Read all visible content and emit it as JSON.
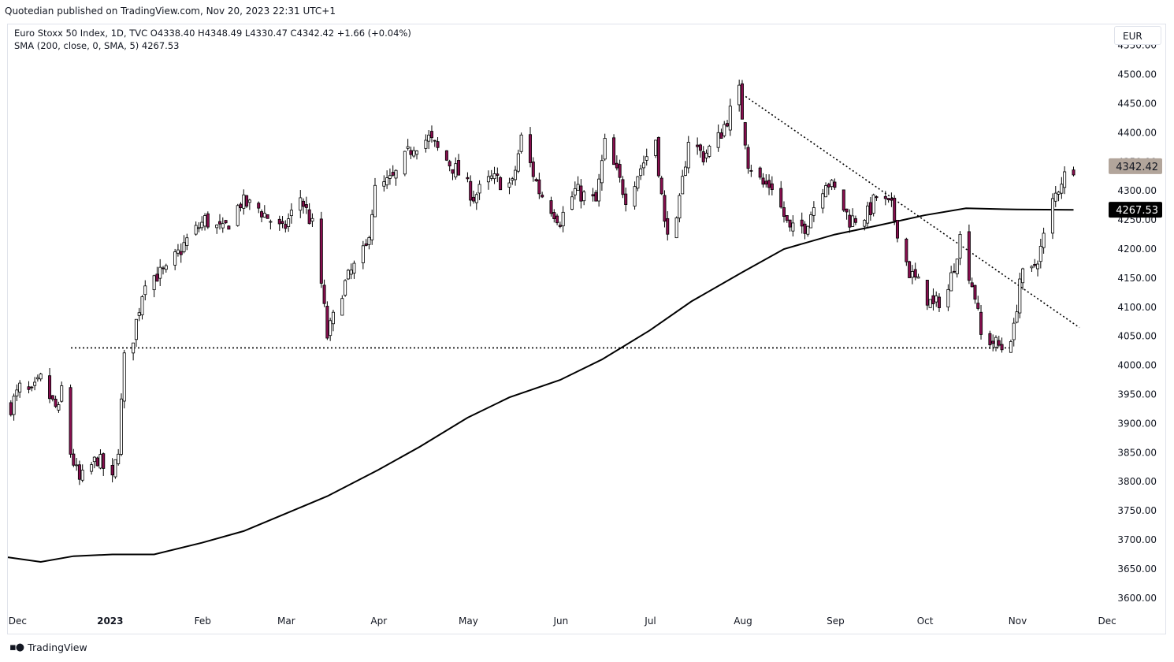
{
  "header": {
    "published": "Quotedian published on TradingView.com, Nov 20, 2023 22:31 UTC+1"
  },
  "legend": {
    "line1": "Euro Stoxx 50 Index, 1D, TVC  O4338.40  H4348.49  L4330.47  C4342.42  +1.66 (+0.04%)",
    "line2": "SMA (200, close, 0, SMA, 5)  4267.53"
  },
  "currency": "EUR",
  "footer": {
    "brand": "TradingView"
  },
  "chart_data": {
    "type": "candlestick",
    "title": "Euro Stoxx 50 Index, 1D, TVC",
    "currency": "EUR",
    "ylim": [
      3575,
      4550
    ],
    "y_ticks": [
      "3600.00",
      "3650.00",
      "3700.00",
      "3750.00",
      "3800.00",
      "3850.00",
      "3900.00",
      "3950.00",
      "4000.00",
      "4050.00",
      "4100.00",
      "4150.00",
      "4200.00",
      "4250.00",
      "4300.00",
      "4350.00",
      "4400.00",
      "4450.00",
      "4500.00",
      "4550.00"
    ],
    "x_ticks": [
      "Dec",
      "2023",
      "Feb",
      "Mar",
      "Apr",
      "May",
      "Jun",
      "Jul",
      "Aug",
      "Sep",
      "Oct",
      "Nov",
      "Dec"
    ],
    "last_price": {
      "label": "4342.42",
      "value": 4342.42,
      "color": "#b2a59b"
    },
    "sma_value": {
      "label": "4267.53",
      "value": 4267.53,
      "color": "#000000"
    },
    "sma_label": "SMA (200, close, 0, SMA, 5)",
    "colors": {
      "up": "#ffffff",
      "down": "#880e4f",
      "outline": "#000000",
      "sma": "#000000"
    },
    "support_line": {
      "value": 4030,
      "style": "dotted"
    },
    "trend_line": {
      "start": [
        "Aug 1",
        4470
      ],
      "end": [
        "Nov 22",
        4065
      ],
      "style": "dotted"
    },
    "close_path": [
      [
        "Nov 29",
        3930
      ],
      [
        "Dec 2",
        3960
      ],
      [
        "Dec 6",
        3950
      ],
      [
        "Dec 9",
        3975
      ],
      [
        "Dec 13",
        3935
      ],
      [
        "Dec 15",
        3920
      ],
      [
        "Dec 16",
        3960
      ],
      [
        "Dec 19",
        3850
      ],
      [
        "Dec 22",
        3800
      ],
      [
        "Dec 28",
        3840
      ],
      [
        "Jan 2",
        3800
      ],
      [
        "Jan 4",
        3860
      ],
      [
        "Jan 6",
        4010
      ],
      [
        "Jan 9",
        4050
      ],
      [
        "Jan 13",
        4150
      ],
      [
        "Jan 20",
        4160
      ],
      [
        "Jan 27",
        4215
      ],
      [
        "Feb 2",
        4250
      ],
      [
        "Feb 8",
        4230
      ],
      [
        "Feb 14",
        4280
      ],
      [
        "Feb 20",
        4270
      ],
      [
        "Feb 28",
        4230
      ],
      [
        "Mar 6",
        4290
      ],
      [
        "Mar 10",
        4240
      ],
      [
        "Mar 13",
        4140
      ],
      [
        "Mar 15",
        4050
      ],
      [
        "Mar 17",
        4080
      ],
      [
        "Mar 20",
        4130
      ],
      [
        "Mar 23",
        4160
      ],
      [
        "Mar 28",
        4200
      ],
      [
        "Mar 31",
        4300
      ],
      [
        "Apr 6",
        4320
      ],
      [
        "Apr 13",
        4380
      ],
      [
        "Apr 18",
        4390
      ],
      [
        "Apr 21",
        4370
      ],
      [
        "Apr 28",
        4330
      ],
      [
        "May 3",
        4290
      ],
      [
        "May 9",
        4320
      ],
      [
        "May 16",
        4310
      ],
      [
        "May 19",
        4390
      ],
      [
        "May 25",
        4300
      ],
      [
        "Jun 1",
        4250
      ],
      [
        "Jun 6",
        4300
      ],
      [
        "Jun 13",
        4280
      ],
      [
        "Jun 16",
        4380
      ],
      [
        "Jun 23",
        4290
      ],
      [
        "Jun 28",
        4340
      ],
      [
        "Jul 3",
        4390
      ],
      [
        "Jul 6",
        4240
      ],
      [
        "Jul 10",
        4240
      ],
      [
        "Jul 14",
        4390
      ],
      [
        "Jul 19",
        4360
      ],
      [
        "Jul 24",
        4390
      ],
      [
        "Jul 31",
        4470
      ],
      [
        "Aug 3",
        4350
      ],
      [
        "Aug 8",
        4310
      ],
      [
        "Aug 11",
        4310
      ],
      [
        "Aug 17",
        4230
      ],
      [
        "Aug 22",
        4240
      ],
      [
        "Aug 29",
        4320
      ],
      [
        "Sep 1",
        4300
      ],
      [
        "Sep 6",
        4250
      ],
      [
        "Sep 12",
        4260
      ],
      [
        "Sep 15",
        4290
      ],
      [
        "Sep 20",
        4270
      ],
      [
        "Sep 26",
        4160
      ],
      [
        "Sep 29",
        4140
      ],
      [
        "Oct 4",
        4100
      ],
      [
        "Oct 9",
        4130
      ],
      [
        "Oct 13",
        4220
      ],
      [
        "Oct 18",
        4120
      ],
      [
        "Oct 20",
        4050
      ],
      [
        "Oct 24",
        4040
      ],
      [
        "Oct 27",
        4030
      ],
      [
        "Oct 31",
        4060
      ],
      [
        "Nov 2",
        4150
      ],
      [
        "Nov 6",
        4160
      ],
      [
        "Nov 9",
        4200
      ],
      [
        "Nov 13",
        4280
      ],
      [
        "Nov 16",
        4320
      ],
      [
        "Nov 20",
        4342.42
      ]
    ],
    "sma_path": [
      [
        "Nov 28",
        3670
      ],
      [
        "Dec 9",
        3662
      ],
      [
        "Dec 20",
        3672
      ],
      [
        "Jan 2",
        3675
      ],
      [
        "Jan 16",
        3675
      ],
      [
        "Feb 1",
        3695
      ],
      [
        "Feb 15",
        3715
      ],
      [
        "Mar 1",
        3745
      ],
      [
        "Mar 15",
        3775
      ],
      [
        "Apr 1",
        3820
      ],
      [
        "Apr 15",
        3860
      ],
      [
        "May 1",
        3910
      ],
      [
        "May 15",
        3945
      ],
      [
        "Jun 1",
        3975
      ],
      [
        "Jun 15",
        4010
      ],
      [
        "Jul 1",
        4060
      ],
      [
        "Jul 15",
        4110
      ],
      [
        "Aug 1",
        4160
      ],
      [
        "Aug 15",
        4200
      ],
      [
        "Sep 1",
        4225
      ],
      [
        "Sep 15",
        4240
      ],
      [
        "Oct 1",
        4258
      ],
      [
        "Oct 15",
        4270
      ],
      [
        "Nov 1",
        4268
      ],
      [
        "Nov 20",
        4267.53
      ]
    ]
  }
}
